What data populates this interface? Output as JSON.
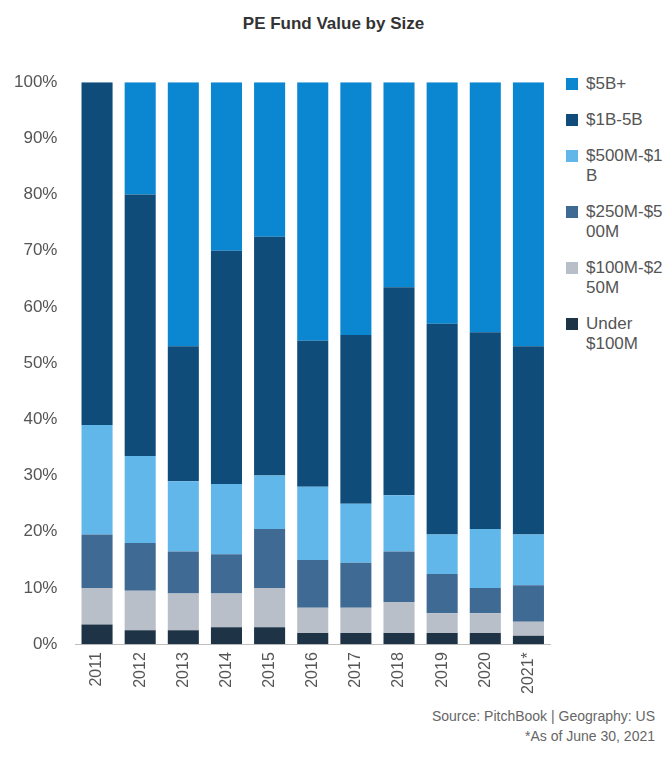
{
  "chart_data": {
    "type": "bar",
    "title": "PE Fund Value by Size",
    "stacked": true,
    "grid": false,
    "legend": "right",
    "categories": [
      "2011",
      "2012",
      "2013",
      "2014",
      "2015",
      "2016",
      "2017",
      "2018",
      "2019",
      "2020",
      "2021*"
    ],
    "series": [
      {
        "name": "Under $100M",
        "color": "#1f3347",
        "values": [
          3.5,
          2.5,
          2.5,
          3,
          3,
          2,
          2,
          2,
          2,
          2,
          1.5
        ]
      },
      {
        "name": "$100M-$250M",
        "color": "#b8bfc8",
        "values": [
          6.5,
          7,
          6.5,
          6,
          7,
          4.5,
          4.5,
          5.5,
          3.5,
          3.5,
          2.5
        ]
      },
      {
        "name": "$250M-$500M",
        "color": "#3f6a94",
        "values": [
          9.5,
          8.5,
          7.5,
          7,
          10.5,
          8.5,
          8,
          9,
          7,
          4.5,
          6.5
        ]
      },
      {
        "name": "$500M-$1B",
        "color": "#62b7ea",
        "values": [
          19.5,
          15.5,
          12.5,
          12.5,
          9.5,
          13,
          10.5,
          10,
          7,
          10.5,
          9
        ]
      },
      {
        "name": "$1B-5B",
        "color": "#0f4c7a",
        "values": [
          61,
          46.5,
          24,
          41.5,
          42.5,
          26,
          30,
          37,
          37.5,
          35,
          33.5
        ]
      },
      {
        "name": "$5B+",
        "color": "#0b87d1",
        "values": [
          0,
          20,
          47,
          30,
          27.5,
          46,
          45,
          36.5,
          43,
          44.5,
          47
        ]
      }
    ],
    "ylim": [
      0,
      100
    ],
    "yticks": [
      {
        "value": 0,
        "label": "0%"
      },
      {
        "value": 10,
        "label": "10%"
      },
      {
        "value": 20,
        "label": "20%"
      },
      {
        "value": 30,
        "label": "30%"
      },
      {
        "value": 40,
        "label": "40%"
      },
      {
        "value": 50,
        "label": "50%"
      },
      {
        "value": 60,
        "label": "60%"
      },
      {
        "value": 70,
        "label": "70%"
      },
      {
        "value": 80,
        "label": "80%"
      },
      {
        "value": 90,
        "label": "90%"
      },
      {
        "value": 100,
        "label": "100%"
      }
    ],
    "annotations": [
      "Source: PitchBook | Geography: US",
      "*As of June 30, 2021"
    ]
  }
}
